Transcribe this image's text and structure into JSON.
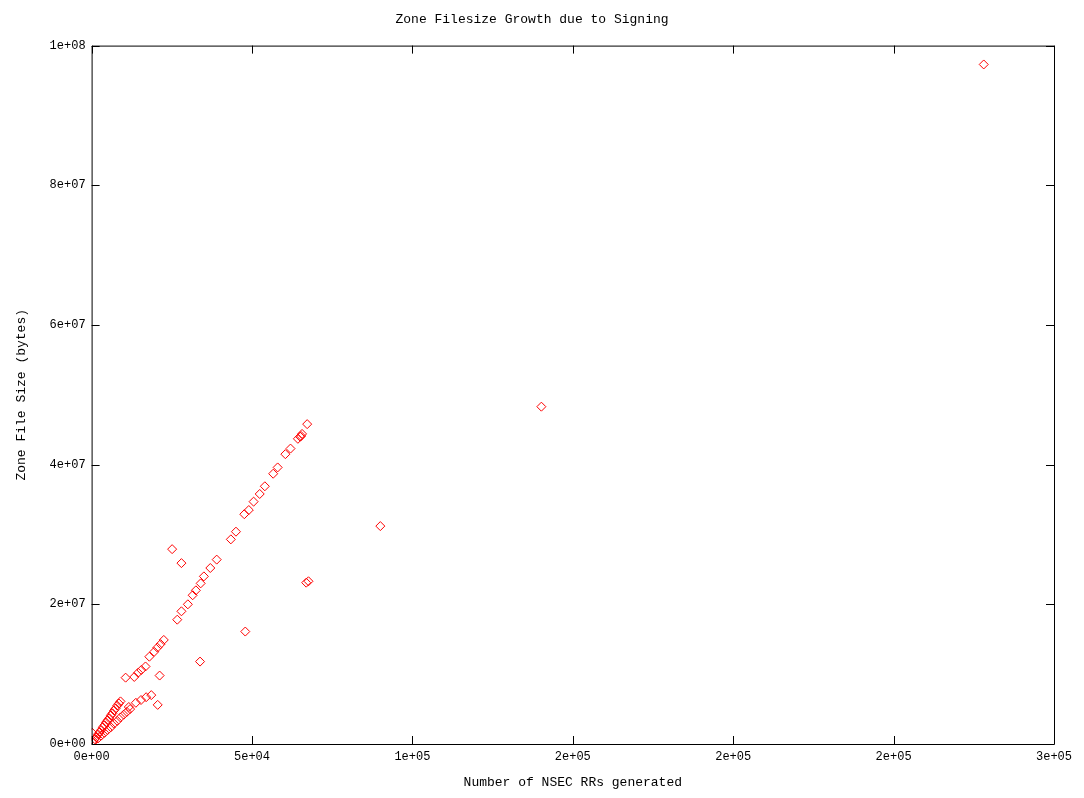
{
  "chart_data": {
    "type": "scatter",
    "title": "Zone Filesize Growth due to Signing",
    "xlabel": "Number of NSEC RRs generated",
    "ylabel": "Zone File Size (bytes)",
    "x": [
      200,
      300,
      600,
      1000,
      1500,
      2000,
      2500,
      3000,
      3500,
      4000,
      4500,
      5000,
      5500,
      6000,
      6500,
      7000,
      7500,
      8000,
      8500,
      9000,
      2000,
      3000,
      4000,
      5000,
      6000,
      7000,
      8000,
      9000,
      10000,
      11000,
      12000,
      11600,
      13800,
      15400,
      17000,
      18600,
      20600,
      10600,
      13300,
      14500,
      15500,
      16800,
      18000,
      19500,
      20500,
      21500,
      22500,
      26700,
      28000,
      30000,
      31500,
      32500,
      34000,
      35000,
      37000,
      39000,
      43400,
      45000,
      47600,
      49000,
      50500,
      52400,
      54000,
      56600,
      58000,
      60400,
      62000,
      64300,
      65000,
      65300,
      65600,
      67200,
      21200,
      25100,
      28000,
      33800,
      47900,
      66900,
      67600,
      90000,
      140200,
      278100
    ],
    "values": [
      1600000,
      200000,
      400000,
      700000,
      1000000,
      1400000,
      1700000,
      2000000,
      2400000,
      2700000,
      3100000,
      3400000,
      3700000,
      4100000,
      4400000,
      4800000,
      5100000,
      5500000,
      5800000,
      6100000,
      800000,
      1200000,
      1600000,
      2000000,
      2400000,
      2900000,
      3300000,
      3800000,
      4200000,
      4600000,
      5000000,
      5300000,
      5900000,
      6300000,
      6700000,
      7000000,
      5600000,
      9500000,
      9600000,
      10200000,
      10600000,
      11100000,
      12500000,
      13200000,
      13800000,
      14300000,
      14900000,
      17800000,
      19000000,
      20000000,
      21300000,
      22000000,
      23000000,
      24000000,
      25200000,
      26400000,
      29300000,
      30400000,
      32900000,
      33500000,
      34700000,
      35800000,
      36900000,
      38700000,
      39600000,
      41500000,
      42300000,
      43700000,
      44000000,
      44100000,
      44400000,
      45800000,
      9800000,
      27900000,
      25900000,
      11800000,
      16100000,
      23100000,
      23300000,
      31200000,
      48300000,
      97300000
    ],
    "color": "#ff0000",
    "marker": "diamond",
    "grid": false,
    "legend": false,
    "xlim": [
      0,
      300000
    ],
    "xticks": [
      {
        "value": 0,
        "label": "0e+00"
      },
      {
        "value": 50000,
        "label": "5e+04"
      },
      {
        "value": 100000,
        "label": "1e+05"
      },
      {
        "value": 150000,
        "label": "2e+05"
      },
      {
        "value": 200000,
        "label": "2e+05"
      },
      {
        "value": 250000,
        "label": "2e+05"
      },
      {
        "value": 300000,
        "label": "3e+05"
      }
    ],
    "ylim": [
      0,
      100000000
    ],
    "yticks": [
      {
        "value": 0,
        "label": "0e+00"
      },
      {
        "value": 20000000,
        "label": "2e+07"
      },
      {
        "value": 40000000,
        "label": "4e+07"
      },
      {
        "value": 60000000,
        "label": "6e+07"
      },
      {
        "value": 80000000,
        "label": "8e+07"
      },
      {
        "value": 100000000,
        "label": "1e+08"
      }
    ]
  }
}
